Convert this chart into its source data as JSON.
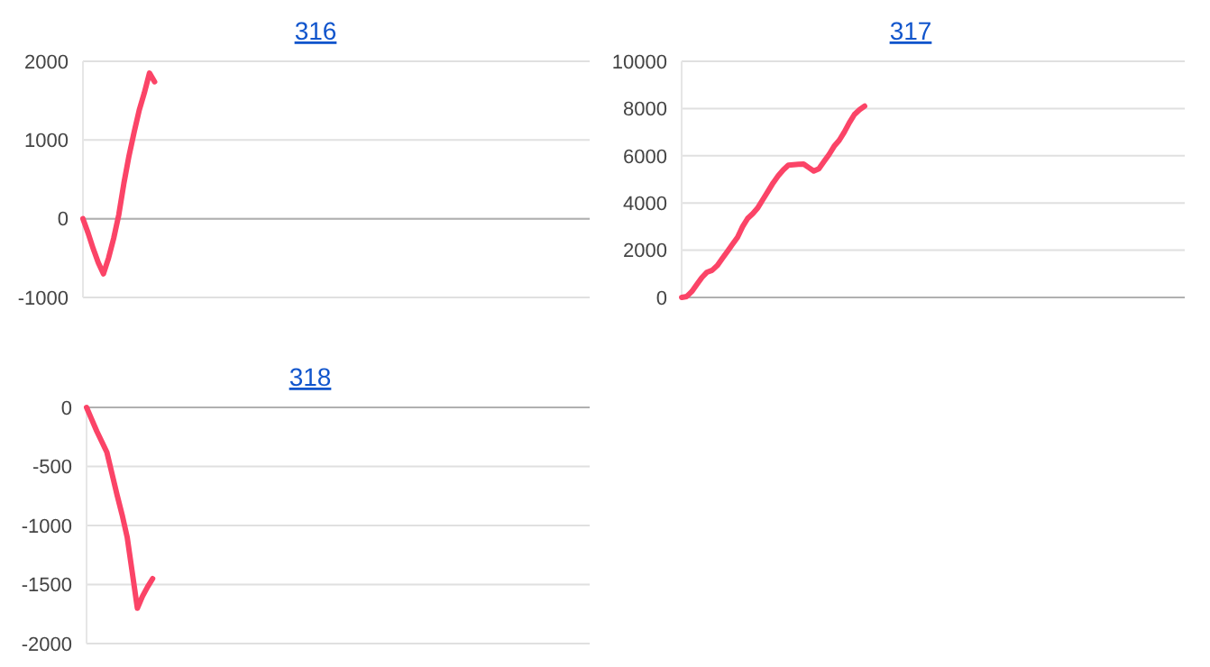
{
  "chart_data": [
    {
      "type": "line",
      "title": "316",
      "categories": [
        null,
        null,
        null,
        null,
        null,
        null,
        null,
        null,
        null,
        null,
        null,
        null,
        null,
        null,
        null,
        null,
        null,
        null,
        null,
        null,
        null,
        null,
        null,
        null,
        null,
        null,
        null,
        null,
        null,
        null,
        null,
        null,
        null,
        null,
        null,
        null,
        null,
        null,
        null,
        null,
        null,
        null,
        null,
        null,
        null,
        null,
        null,
        null,
        null,
        null,
        null,
        null,
        null,
        null,
        null,
        null,
        null,
        null,
        null,
        null,
        null,
        null,
        null,
        null,
        null,
        null,
        null,
        null,
        null,
        null,
        null,
        null,
        null,
        null,
        null,
        null,
        null,
        null,
        null,
        null,
        null,
        null,
        null,
        null,
        null,
        null,
        null,
        null,
        null,
        null,
        null,
        null,
        null,
        null,
        null,
        null,
        null,
        null,
        null,
        null
      ],
      "series": [
        {
          "color": "#fb4467",
          "values": [
            0,
            -180,
            -380,
            -560,
            -700,
            -500,
            -250,
            50,
            450,
            800,
            1100,
            1380,
            1600,
            1850,
            1740,
            null,
            null,
            null,
            null,
            null,
            null,
            null,
            null,
            null,
            null,
            null,
            null,
            null,
            null,
            null,
            null,
            null,
            null,
            null,
            null,
            null,
            null,
            null,
            null,
            null,
            null,
            null,
            null,
            null,
            null,
            null,
            null,
            null,
            null,
            null,
            null,
            null,
            null,
            null,
            null,
            null,
            null,
            null,
            null,
            null,
            null,
            null,
            null,
            null,
            null,
            null,
            null,
            null,
            null,
            null,
            null,
            null,
            null,
            null,
            null,
            null,
            null,
            null,
            null,
            null,
            null,
            null,
            null,
            null,
            null,
            null,
            null,
            null,
            null,
            null,
            null,
            null,
            null,
            null,
            null,
            null,
            null,
            null,
            null,
            null
          ]
        }
      ],
      "ylim": [
        -1000,
        2000
      ],
      "yticks": [
        -1000,
        0,
        1000,
        2000
      ],
      "grid": "y",
      "tick_labels": "y",
      "marker": "none",
      "line_style": "solid"
    },
    {
      "type": "line",
      "title": "317",
      "categories": [
        null,
        null,
        null,
        null,
        null,
        null,
        null,
        null,
        null,
        null,
        null,
        null,
        null,
        null,
        null,
        null,
        null,
        null,
        null,
        null,
        null,
        null,
        null,
        null,
        null,
        null,
        null,
        null,
        null,
        null,
        null,
        null,
        null,
        null,
        null,
        null,
        null,
        null,
        null,
        null,
        null,
        null,
        null,
        null,
        null,
        null,
        null,
        null,
        null,
        null,
        null,
        null,
        null,
        null,
        null,
        null,
        null,
        null,
        null,
        null,
        null,
        null,
        null,
        null,
        null,
        null,
        null,
        null,
        null,
        null,
        null,
        null,
        null,
        null,
        null,
        null,
        null,
        null,
        null,
        null,
        null,
        null,
        null,
        null,
        null,
        null,
        null,
        null,
        null,
        null,
        null,
        null,
        null,
        null,
        null,
        null,
        null,
        null,
        null,
        null
      ],
      "series": [
        {
          "color": "#fb4467",
          "values": [
            0,
            40,
            250,
            550,
            850,
            1070,
            1150,
            1350,
            1650,
            1950,
            2250,
            2550,
            3000,
            3350,
            3550,
            3800,
            4150,
            4500,
            4850,
            5150,
            5400,
            5600,
            5620,
            5640,
            5650,
            5500,
            5350,
            5450,
            5750,
            6050,
            6400,
            6650,
            7000,
            7400,
            7750,
            7950,
            8100,
            null,
            null,
            null,
            null,
            null,
            null,
            null,
            null,
            null,
            null,
            null,
            null,
            null,
            null,
            null,
            null,
            null,
            null,
            null,
            null,
            null,
            null,
            null,
            null,
            null,
            null,
            null,
            null,
            null,
            null,
            null,
            null,
            null,
            null,
            null,
            null,
            null,
            null,
            null,
            null,
            null,
            null,
            null,
            null,
            null,
            null,
            null,
            null,
            null,
            null,
            null,
            null,
            null,
            null,
            null,
            null,
            null,
            null,
            null,
            null,
            null,
            null,
            null
          ]
        }
      ],
      "ylim": [
        0,
        10000
      ],
      "yticks": [
        0,
        2000,
        4000,
        6000,
        8000,
        10000
      ],
      "grid": "y",
      "tick_labels": "y",
      "marker": "none",
      "line_style": "solid"
    },
    {
      "type": "line",
      "title": "318",
      "categories": [
        null,
        null,
        null,
        null,
        null,
        null,
        null,
        null,
        null,
        null,
        null,
        null,
        null,
        null,
        null,
        null,
        null,
        null,
        null,
        null,
        null,
        null,
        null,
        null,
        null,
        null,
        null,
        null,
        null,
        null,
        null,
        null,
        null,
        null,
        null,
        null,
        null,
        null,
        null,
        null,
        null,
        null,
        null,
        null,
        null,
        null,
        null,
        null,
        null,
        null,
        null,
        null,
        null,
        null,
        null,
        null,
        null,
        null,
        null,
        null,
        null,
        null,
        null,
        null,
        null,
        null,
        null,
        null,
        null,
        null,
        null,
        null,
        null,
        null,
        null,
        null,
        null,
        null,
        null,
        null,
        null,
        null,
        null,
        null,
        null,
        null,
        null,
        null,
        null,
        null,
        null,
        null,
        null,
        null,
        null,
        null,
        null,
        null,
        null,
        null
      ],
      "series": [
        {
          "color": "#fb4467",
          "values": [
            0,
            -100,
            -200,
            -290,
            -380,
            -560,
            -740,
            -910,
            -1100,
            -1400,
            -1700,
            -1600,
            -1520,
            -1450,
            null,
            null,
            null,
            null,
            null,
            null,
            null,
            null,
            null,
            null,
            null,
            null,
            null,
            null,
            null,
            null,
            null,
            null,
            null,
            null,
            null,
            null,
            null,
            null,
            null,
            null,
            null,
            null,
            null,
            null,
            null,
            null,
            null,
            null,
            null,
            null,
            null,
            null,
            null,
            null,
            null,
            null,
            null,
            null,
            null,
            null,
            null,
            null,
            null,
            null,
            null,
            null,
            null,
            null,
            null,
            null,
            null,
            null,
            null,
            null,
            null,
            null,
            null,
            null,
            null,
            null,
            null,
            null,
            null,
            null,
            null,
            null,
            null,
            null,
            null,
            null,
            null,
            null,
            null,
            null,
            null,
            null,
            null,
            null,
            null,
            null
          ]
        }
      ],
      "ylim": [
        -2000,
        0
      ],
      "yticks": [
        -2000,
        -1500,
        -1000,
        -500,
        0
      ],
      "grid": "y",
      "tick_labels": "y",
      "marker": "none",
      "line_style": "solid"
    }
  ]
}
